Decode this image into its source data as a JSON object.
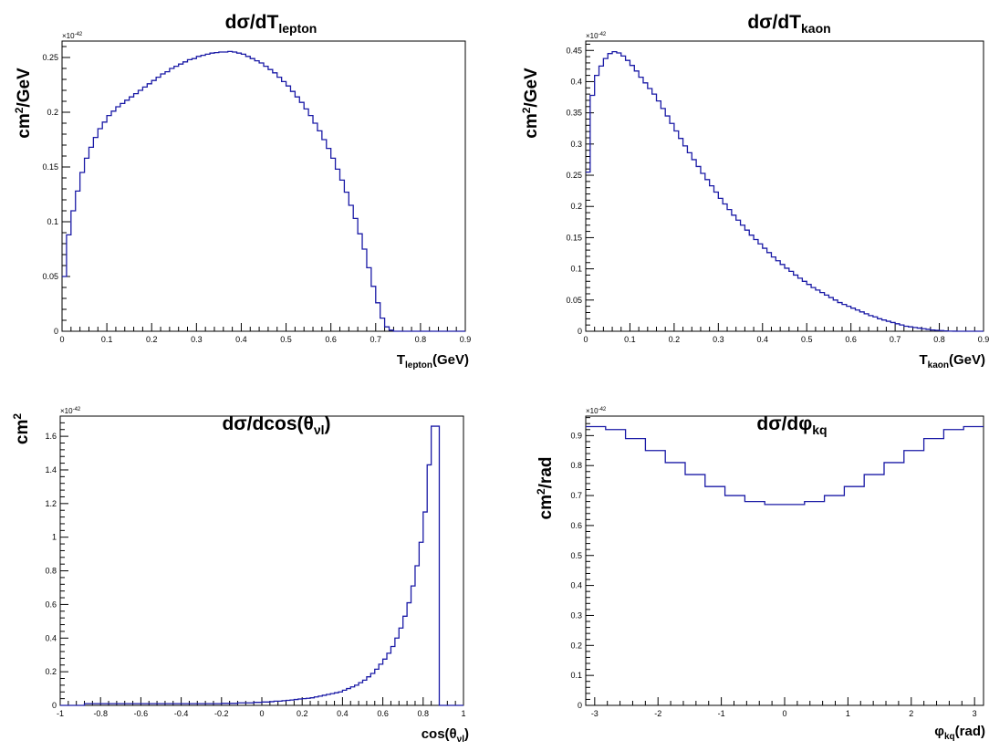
{
  "chart_data": [
    {
      "type": "histogram",
      "title": "dσ/dT",
      "title_sub": "lepton",
      "xlabel": "T",
      "xlabel_sub": "lepton",
      "xlabel_suffix": "(GeV)",
      "ylabel": "cm",
      "ylabel_sup": "2",
      "ylabel_suffix": "/GeV",
      "multiplier": "×10",
      "multiplier_exp": "-42",
      "xlim": [
        0,
        0.9
      ],
      "ylim": [
        0,
        0.265
      ],
      "xticks": [
        0,
        0.1,
        0.2,
        0.3,
        0.4,
        0.5,
        0.6,
        0.7,
        0.8,
        0.9
      ],
      "xtick_labels": [
        "0",
        "0.1",
        "0.2",
        "0.3",
        "0.4",
        "0.5",
        "0.6",
        "0.7",
        "0.8",
        "0.9"
      ],
      "yticks": [
        0,
        0.05,
        0.1,
        0.15,
        0.2,
        0.25
      ],
      "ytick_labels": [
        "0",
        "0.05",
        "0.1",
        "0.15",
        "0.2",
        "0.25"
      ],
      "bin_start": 0,
      "bin_width": 0.01,
      "values": [
        0.05,
        0.088,
        0.11,
        0.128,
        0.145,
        0.158,
        0.168,
        0.177,
        0.185,
        0.191,
        0.197,
        0.201,
        0.205,
        0.208,
        0.211,
        0.214,
        0.217,
        0.22,
        0.223,
        0.226,
        0.229,
        0.232,
        0.235,
        0.237,
        0.24,
        0.242,
        0.244,
        0.246,
        0.248,
        0.249,
        0.251,
        0.252,
        0.253,
        0.254,
        0.2545,
        0.255,
        0.255,
        0.2555,
        0.255,
        0.254,
        0.253,
        0.251,
        0.249,
        0.247,
        0.245,
        0.242,
        0.239,
        0.236,
        0.232,
        0.228,
        0.224,
        0.219,
        0.214,
        0.209,
        0.203,
        0.197,
        0.19,
        0.183,
        0.175,
        0.167,
        0.158,
        0.148,
        0.138,
        0.127,
        0.115,
        0.103,
        0.089,
        0.075,
        0.058,
        0.041,
        0.026,
        0.012,
        0.004,
        0.001,
        0,
        0,
        0,
        0,
        0,
        0,
        0,
        0,
        0,
        0,
        0,
        0,
        0,
        0,
        0,
        0
      ]
    },
    {
      "type": "histogram",
      "title": "dσ/dT",
      "title_sub": "kaon",
      "xlabel": "T",
      "xlabel_sub": "kaon",
      "xlabel_suffix": "(GeV)",
      "ylabel": "cm",
      "ylabel_sup": "2",
      "ylabel_suffix": "/GeV",
      "multiplier": "×10",
      "multiplier_exp": "-42",
      "xlim": [
        0,
        0.9
      ],
      "ylim": [
        0,
        0.465
      ],
      "xticks": [
        0,
        0.1,
        0.2,
        0.3,
        0.4,
        0.5,
        0.6,
        0.7,
        0.8,
        0.9
      ],
      "xtick_labels": [
        "0",
        "0.1",
        "0.2",
        "0.3",
        "0.4",
        "0.5",
        "0.6",
        "0.7",
        "0.8",
        "0.9"
      ],
      "yticks": [
        0,
        0.05,
        0.1,
        0.15,
        0.2,
        0.25,
        0.3,
        0.35,
        0.4,
        0.45
      ],
      "ytick_labels": [
        "0",
        "0.05",
        "0.1",
        "0.15",
        "0.2",
        "0.25",
        "0.3",
        "0.35",
        "0.4",
        "0.45"
      ],
      "bin_start": 0,
      "bin_width": 0.01,
      "values": [
        0.255,
        0.378,
        0.41,
        0.425,
        0.437,
        0.445,
        0.448,
        0.446,
        0.441,
        0.434,
        0.426,
        0.417,
        0.407,
        0.398,
        0.389,
        0.38,
        0.369,
        0.357,
        0.345,
        0.333,
        0.321,
        0.309,
        0.297,
        0.286,
        0.275,
        0.264,
        0.253,
        0.243,
        0.233,
        0.223,
        0.213,
        0.204,
        0.195,
        0.186,
        0.178,
        0.17,
        0.162,
        0.154,
        0.147,
        0.14,
        0.133,
        0.126,
        0.119,
        0.113,
        0.107,
        0.101,
        0.096,
        0.09,
        0.085,
        0.08,
        0.075,
        0.07,
        0.066,
        0.062,
        0.058,
        0.054,
        0.05,
        0.046,
        0.043,
        0.04,
        0.037,
        0.034,
        0.031,
        0.028,
        0.025,
        0.023,
        0.02,
        0.018,
        0.016,
        0.014,
        0.012,
        0.01,
        0.008,
        0.007,
        0.006,
        0.005,
        0.004,
        0.003,
        0.002,
        0.0015,
        0.001,
        0.0005,
        0.0002,
        0.0001,
        0,
        0,
        0,
        0,
        0,
        0
      ]
    },
    {
      "type": "histogram",
      "title": "dσ/dcos(θ",
      "title_sub": "νl",
      "title_suffix": ")",
      "xlabel": "cos(θ",
      "xlabel_sub": "νl",
      "xlabel_suffix": ")",
      "ylabel": "cm",
      "ylabel_sup": "2",
      "ylabel_suffix": "",
      "multiplier": "×10",
      "multiplier_exp": "-42",
      "xlim": [
        -1,
        1
      ],
      "ylim": [
        0,
        1.72
      ],
      "xticks": [
        -1,
        -0.8,
        -0.6,
        -0.4,
        -0.2,
        0,
        0.2,
        0.4,
        0.6,
        0.8,
        1
      ],
      "xtick_labels": [
        "-1",
        "-0.8",
        "-0.6",
        "-0.4",
        "-0.2",
        "0",
        "0.2",
        "0.4",
        "0.6",
        "0.8",
        "1"
      ],
      "yticks": [
        0,
        0.2,
        0.4,
        0.6,
        0.8,
        1,
        1.2,
        1.4,
        1.6
      ],
      "ytick_labels": [
        "0",
        "0.2",
        "0.4",
        "0.6",
        "0.8",
        "1",
        "1.2",
        "1.4",
        "1.6"
      ],
      "bin_start": -1,
      "bin_width": 0.02,
      "values": [
        0,
        0,
        0,
        0,
        0,
        0,
        0.01,
        0.01,
        0.01,
        0.01,
        0.01,
        0.01,
        0.01,
        0.01,
        0.01,
        0.01,
        0.01,
        0.01,
        0.01,
        0.01,
        0.01,
        0.01,
        0.01,
        0.01,
        0.01,
        0.01,
        0.01,
        0.01,
        0.01,
        0.01,
        0.01,
        0.01,
        0.01,
        0.01,
        0.01,
        0.01,
        0.01,
        0.01,
        0.01,
        0.01,
        0.012,
        0.012,
        0.012,
        0.012,
        0.015,
        0.015,
        0.015,
        0.015,
        0.018,
        0.018,
        0.02,
        0.02,
        0.022,
        0.025,
        0.025,
        0.028,
        0.03,
        0.032,
        0.035,
        0.038,
        0.04,
        0.042,
        0.045,
        0.05,
        0.055,
        0.06,
        0.065,
        0.07,
        0.075,
        0.08,
        0.09,
        0.1,
        0.11,
        0.12,
        0.135,
        0.15,
        0.17,
        0.19,
        0.215,
        0.245,
        0.275,
        0.31,
        0.35,
        0.4,
        0.46,
        0.53,
        0.61,
        0.71,
        0.83,
        0.97,
        1.15,
        1.43,
        1.66,
        1.66,
        0,
        0,
        0,
        0,
        0,
        0
      ]
    },
    {
      "type": "histogram",
      "title": "dσ/dφ",
      "title_sub": "kq",
      "xlabel": "φ",
      "xlabel_sub": "kq",
      "xlabel_suffix": "(rad)",
      "ylabel": "cm",
      "ylabel_sup": "2",
      "ylabel_suffix": "/rad",
      "multiplier": "×10",
      "multiplier_exp": "-42",
      "xlim": [
        -3.1416,
        3.1416
      ],
      "ylim": [
        0,
        0.965
      ],
      "xticks": [
        -3,
        -2,
        -1,
        0,
        1,
        2,
        3
      ],
      "xtick_labels": [
        "-3",
        "-2",
        "-1",
        "0",
        "1",
        "2",
        "3"
      ],
      "yticks": [
        0,
        0.1,
        0.2,
        0.3,
        0.4,
        0.5,
        0.6,
        0.7,
        0.8,
        0.9
      ],
      "ytick_labels": [
        "0",
        "0.1",
        "0.2",
        "0.3",
        "0.4",
        "0.5",
        "0.6",
        "0.7",
        "0.8",
        "0.9"
      ],
      "bin_start": -3.1416,
      "bin_width": 0.31416,
      "values": [
        0.93,
        0.92,
        0.89,
        0.85,
        0.81,
        0.77,
        0.73,
        0.7,
        0.68,
        0.67,
        0.67,
        0.68,
        0.7,
        0.73,
        0.77,
        0.81,
        0.85,
        0.89,
        0.92,
        0.93
      ]
    }
  ]
}
